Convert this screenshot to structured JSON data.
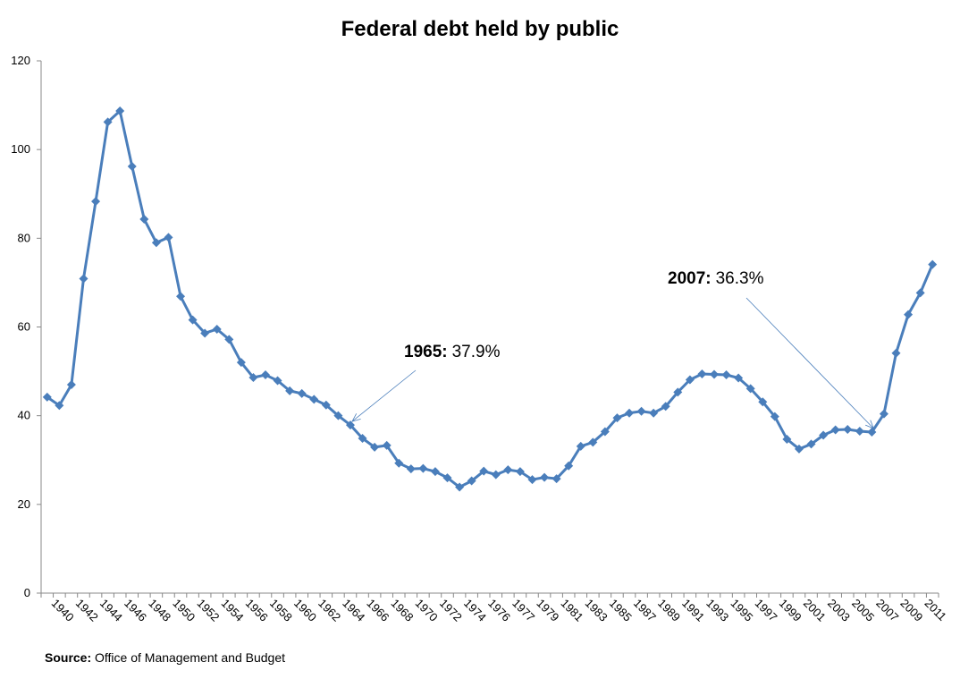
{
  "chart_data": {
    "type": "line",
    "title": "Federal debt held by public",
    "categories": [
      "1940",
      null,
      "1942",
      null,
      "1944",
      null,
      "1946",
      null,
      "1948",
      null,
      "1950",
      null,
      "1952",
      null,
      "1954",
      null,
      "1956",
      null,
      "1958",
      null,
      "1960",
      null,
      "1962",
      null,
      "1964",
      null,
      "1966",
      null,
      "1968",
      null,
      "1970",
      null,
      "1972",
      null,
      "1974",
      null,
      "1976",
      null,
      "1977",
      null,
      "1979",
      null,
      "1981",
      null,
      "1983",
      null,
      "1985",
      null,
      "1987",
      null,
      "1989",
      null,
      "1991",
      null,
      "1993",
      null,
      "1995",
      null,
      "1997",
      null,
      "1999",
      null,
      "2001",
      null,
      "2003",
      null,
      "2005",
      null,
      "2007",
      null,
      "2009",
      null,
      "2011",
      null
    ],
    "series": [
      {
        "name": "Federal debt held by public",
        "color": "#4a7ebb",
        "values": [
          44.2,
          42.3,
          47.0,
          70.9,
          88.3,
          106.2,
          108.7,
          96.2,
          84.3,
          79.0,
          80.2,
          66.9,
          61.6,
          58.6,
          59.5,
          57.2,
          52.0,
          48.6,
          49.2,
          47.9,
          45.6,
          45.0,
          43.7,
          42.4,
          40.0,
          37.9,
          34.9,
          32.9,
          33.3,
          29.3,
          28.0,
          28.1,
          27.4,
          26.0,
          23.9,
          25.3,
          27.5,
          26.7,
          27.8,
          27.4,
          25.6,
          26.1,
          25.8,
          28.7,
          33.1,
          34.0,
          36.4,
          39.5,
          40.6,
          41.0,
          40.6,
          42.1,
          45.3,
          48.1,
          49.4,
          49.3,
          49.2,
          48.5,
          46.1,
          43.1,
          39.8,
          34.7,
          32.5,
          33.6,
          35.6,
          36.8,
          36.9,
          36.5,
          36.3,
          40.4,
          54.1,
          62.8,
          67.7,
          74.1
        ]
      }
    ],
    "ylim": [
      0,
      120
    ],
    "yticks": [
      0,
      20,
      40,
      60,
      80,
      100,
      120
    ],
    "annotations": [
      {
        "label": "1965:",
        "text": "37.9%",
        "index": 25
      },
      {
        "label": "2007:",
        "text": "36.3%",
        "index": 68
      }
    ],
    "source": {
      "label": "Source:",
      "text": "Office of Management and Budget"
    }
  }
}
